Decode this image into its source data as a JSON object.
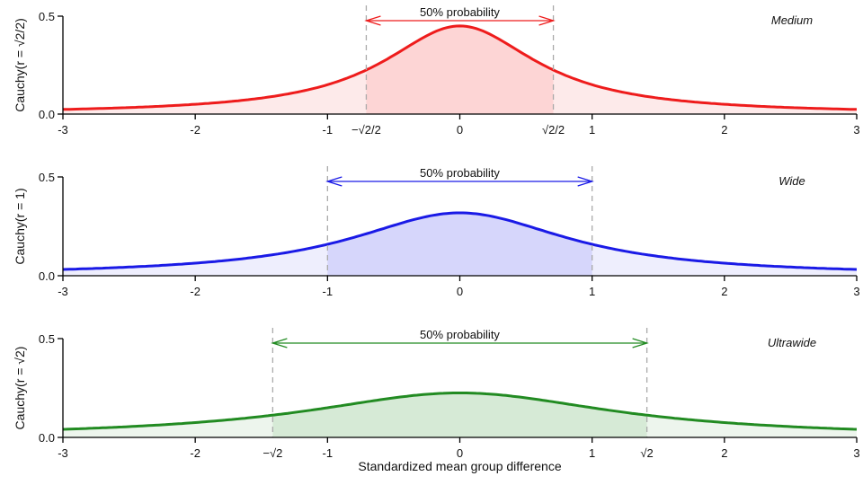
{
  "chart_data": [
    {
      "type": "area",
      "title": "Medium",
      "ylabel": "Cauchy(r = √2/2)",
      "xlabel": "",
      "distribution": "cauchy",
      "scale_r": 0.7071,
      "xlim": [
        -3,
        3
      ],
      "ylim": [
        0,
        0.5
      ],
      "x_ticks": [
        "-3",
        "-2",
        "-1",
        "0",
        "1",
        "2",
        "3"
      ],
      "x_tick_values": [
        -3,
        -2,
        -1,
        0,
        1,
        2,
        3
      ],
      "y_ticks": [
        "0.0",
        "0.5"
      ],
      "y_tick_values": [
        0,
        0.5
      ],
      "interval": [
        -0.7071,
        0.7071
      ],
      "interval_labels": [
        "−√2/2",
        "√2/2"
      ],
      "annotation": "50% probability",
      "peak": 0.45,
      "color": "#ee1c1c",
      "fill_light": "#fdeaea",
      "fill_dark": "#fdd5d5"
    },
    {
      "type": "area",
      "title": "Wide",
      "ylabel": "Cauchy(r = 1)",
      "xlabel": "",
      "distribution": "cauchy",
      "scale_r": 1,
      "xlim": [
        -3,
        3
      ],
      "ylim": [
        0,
        0.5
      ],
      "x_ticks": [
        "-3",
        "-2",
        "-1",
        "0",
        "1",
        "2",
        "3"
      ],
      "x_tick_values": [
        -3,
        -2,
        -1,
        0,
        1,
        2,
        3
      ],
      "y_ticks": [
        "0.0",
        "0.5"
      ],
      "y_tick_values": [
        0,
        0.5
      ],
      "interval": [
        -1,
        1
      ],
      "interval_labels": [],
      "annotation": "50% probability",
      "peak": 0.318,
      "color": "#1a1ae6",
      "fill_light": "#eeeefd",
      "fill_dark": "#d6d6fb"
    },
    {
      "type": "area",
      "title": "Ultrawide",
      "ylabel": "Cauchy(r = √2)",
      "xlabel": "Standardized mean group difference",
      "distribution": "cauchy",
      "scale_r": 1.4142,
      "xlim": [
        -3,
        3
      ],
      "ylim": [
        0,
        0.5
      ],
      "x_ticks": [
        "-3",
        "-2",
        "-1",
        "0",
        "1",
        "2",
        "3"
      ],
      "x_tick_values": [
        -3,
        -2,
        -1,
        0,
        1,
        2,
        3
      ],
      "y_ticks": [
        "0.0",
        "0.5"
      ],
      "y_tick_values": [
        0,
        0.5
      ],
      "interval": [
        -1.4142,
        1.4142
      ],
      "interval_labels": [
        "−√2",
        "√2"
      ],
      "annotation": "50% probability",
      "peak": 0.225,
      "color": "#228b22",
      "fill_light": "#edf5ed",
      "fill_dark": "#d6ead6"
    }
  ]
}
